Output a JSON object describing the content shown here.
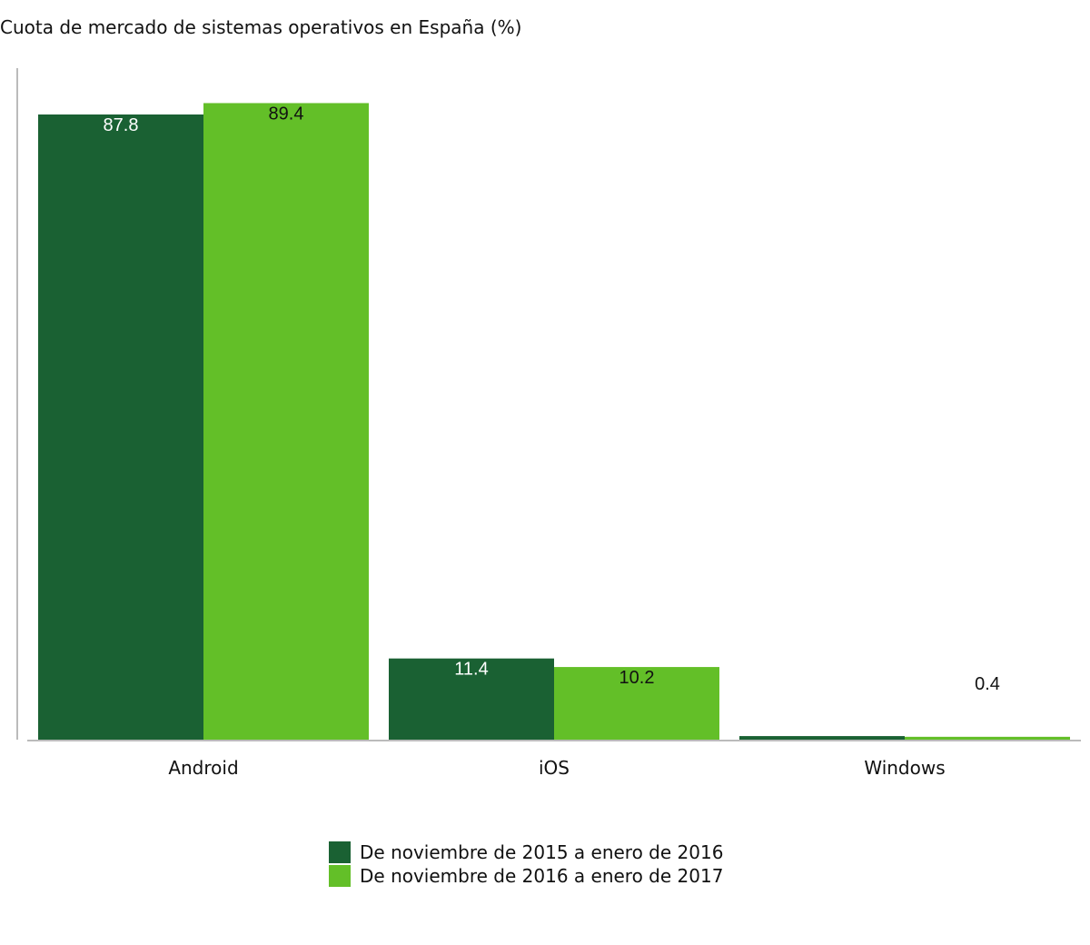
{
  "chart_data": {
    "type": "bar",
    "title": "Cuota de mercado de sistemas operativos en España (%)",
    "xlabel": "",
    "ylabel": "",
    "categories": [
      "Android",
      "iOS",
      "Windows"
    ],
    "series": [
      {
        "name": "De noviembre de 2015 a enero de 2016",
        "color": "#1a6133",
        "values": [
          87.8,
          11.4,
          0.5
        ],
        "labels": [
          "87.8",
          "11.4",
          null
        ]
      },
      {
        "name": "De noviembre de 2016 a enero de 2017",
        "color": "#63bf28",
        "values": [
          89.4,
          10.2,
          0.4
        ],
        "labels": [
          "89.4",
          "10.2",
          "0.4"
        ]
      }
    ],
    "ylim": [
      0,
      94
    ],
    "grid": false,
    "legend": "bottom-center"
  }
}
